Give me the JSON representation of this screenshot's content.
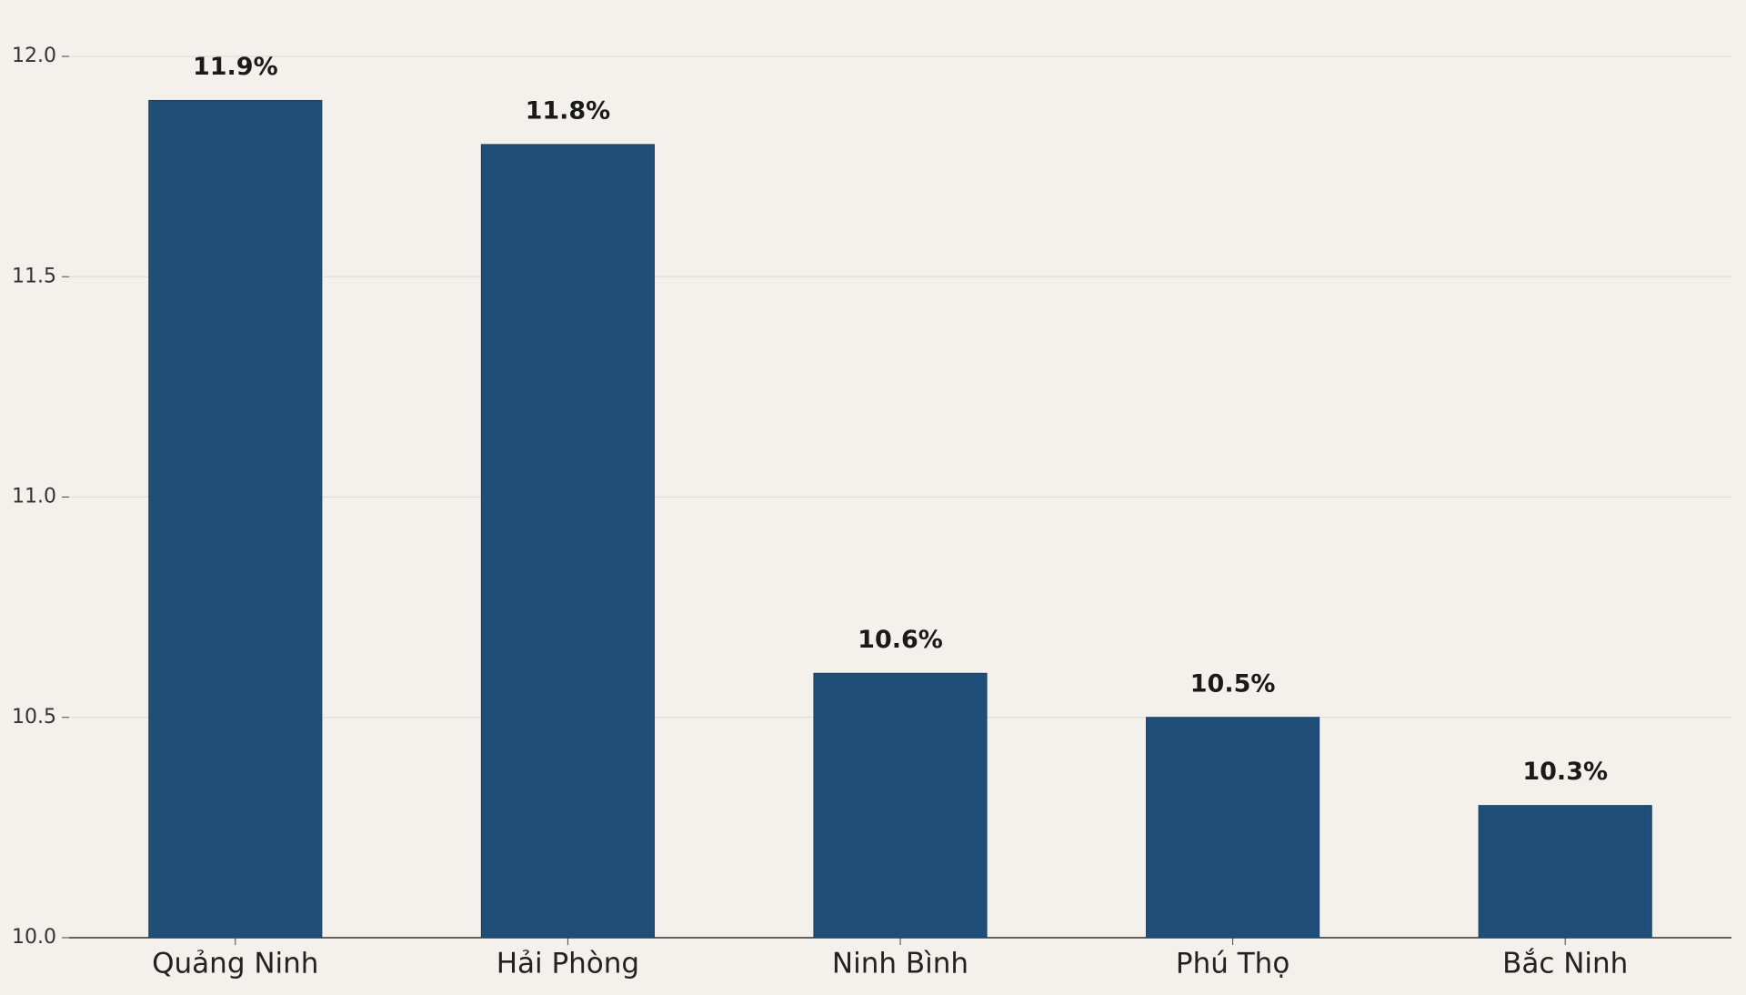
{
  "chart_data": {
    "type": "bar",
    "categories": [
      "Quảng Ninh",
      "Hải Phòng",
      "Ninh Bình",
      "Phú Thọ",
      "Bắc Ninh"
    ],
    "values": [
      11.9,
      11.8,
      10.6,
      10.5,
      10.3
    ],
    "value_labels": [
      "11.9%",
      "11.8%",
      "10.6%",
      "10.5%",
      "10.3%"
    ],
    "color": "#1f4e79",
    "ylim": [
      10,
      12
    ],
    "yticks": [
      {
        "value": 10,
        "label": "10.0"
      },
      10.5,
      {
        "value": 11,
        "label": "11.0"
      },
      11.5,
      {
        "value": 12,
        "label": "12.0"
      }
    ],
    "grid": true
  }
}
